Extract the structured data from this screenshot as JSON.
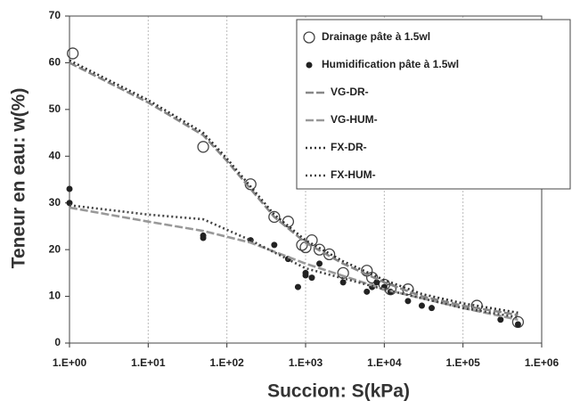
{
  "chart_data": {
    "type": "scatter",
    "xlabel": "Succion: S(kPa)",
    "ylabel": "Teneur en eau: w(%)",
    "xscale": "log",
    "xlim": [
      1,
      1000000
    ],
    "ylim": [
      0,
      70
    ],
    "xticks": [
      {
        "value": 1,
        "label": "1.E+00"
      },
      {
        "value": 10,
        "label": "1.E+01"
      },
      {
        "value": 100,
        "label": "1.E+02"
      },
      {
        "value": 1000,
        "label": "1.E+03"
      },
      {
        "value": 10000,
        "label": "1.E+04"
      },
      {
        "value": 100000,
        "label": "1.E+05"
      },
      {
        "value": 1000000,
        "label": "1.E+06"
      }
    ],
    "yticks": [
      0,
      10,
      20,
      30,
      40,
      50,
      60,
      70
    ],
    "grid": true,
    "legend": "upper right",
    "series": [
      {
        "name": "Drainage pâte à 1.5wl",
        "color": "#444",
        "style": "open-marker",
        "x": [
          1.1,
          50,
          200,
          400,
          600,
          900,
          1000,
          1200,
          1500,
          2000,
          3000,
          6000,
          7000,
          10000,
          12000,
          20000,
          150000,
          500000
        ],
        "values": [
          62,
          42,
          34,
          27,
          26,
          21,
          20.5,
          22,
          20,
          19,
          15,
          15.5,
          14,
          12.5,
          11.5,
          11.5,
          8,
          4.5
        ]
      },
      {
        "name": "Humidification pâte à 1.5wl",
        "color": "#222",
        "style": "filled-marker",
        "x": [
          1,
          1,
          50,
          50,
          200,
          400,
          600,
          800,
          1000,
          1000,
          1200,
          1500,
          3000,
          6000,
          7000,
          8000,
          10000,
          12000,
          20000,
          30000,
          40000,
          300000,
          500000
        ],
        "values": [
          33,
          30,
          23,
          22.5,
          22,
          21,
          18,
          12,
          15,
          14.5,
          14,
          17,
          13,
          11,
          12,
          13,
          12,
          11,
          9,
          8,
          7.5,
          5,
          4
        ]
      },
      {
        "name": "VG-DR-",
        "color": "#888",
        "style": "dash",
        "x": [
          1,
          10,
          50,
          100,
          200,
          400,
          1000,
          3000,
          10000,
          30000,
          100000,
          500000
        ],
        "values": [
          60,
          51.5,
          44.5,
          39,
          33,
          27,
          21.5,
          17,
          13,
          10,
          8,
          6
        ]
      },
      {
        "name": "VG-HUM-",
        "color": "#999",
        "style": "dash",
        "x": [
          1,
          10,
          50,
          200,
          1000,
          10000,
          100000,
          500000
        ],
        "values": [
          29,
          26,
          24,
          21.5,
          17,
          11.5,
          7.5,
          5
        ]
      },
      {
        "name": "FX-DR-",
        "color": "#333",
        "style": "dot",
        "x": [
          1,
          10,
          50,
          100,
          200,
          400,
          1000,
          3000,
          10000,
          30000,
          100000,
          500000
        ],
        "values": [
          60.5,
          52,
          45,
          39.5,
          33.5,
          27.5,
          22,
          17.5,
          13.5,
          10.5,
          8.5,
          6.5
        ]
      },
      {
        "name": "FX-HUM-",
        "color": "#444",
        "style": "dot",
        "x": [
          1,
          10,
          50,
          200,
          1000,
          10000,
          100000,
          500000
        ],
        "values": [
          29.5,
          27.5,
          26.5,
          22,
          16,
          11.5,
          7.5,
          5.5
        ]
      }
    ]
  }
}
